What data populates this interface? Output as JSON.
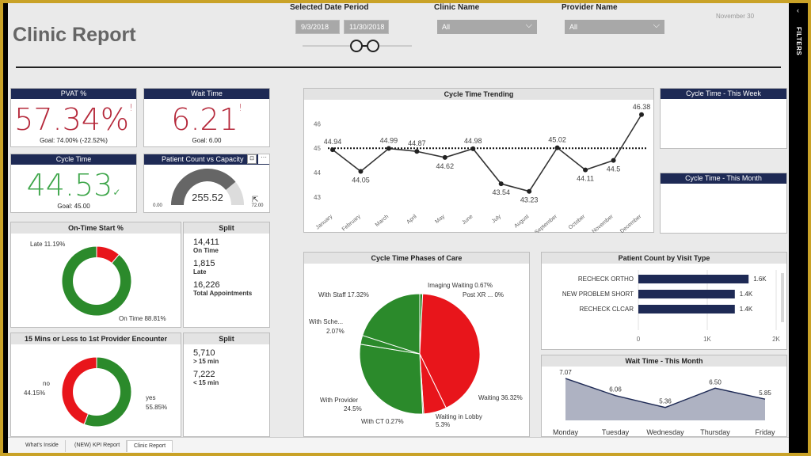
{
  "app": {
    "title": "Clinic Report",
    "date_stamp": "November 30",
    "filters_label": "FILTERS"
  },
  "slicers": {
    "date_label": "Selected Date Period",
    "date_start": "9/3/2018",
    "date_end": "11/30/2018",
    "clinic_label": "Clinic Name",
    "clinic_value": "All",
    "provider_label": "Provider Name",
    "provider_value": "All"
  },
  "kpis": {
    "pvat": {
      "title": "PVAT %",
      "value": "57.34%",
      "goal": "Goal: 74.00% (-22.52%)",
      "indicator": "!"
    },
    "wait": {
      "title": "Wait Time",
      "value": "6.21",
      "goal": "Goal: 6.00",
      "indicator": "!"
    },
    "cycle": {
      "title": "Cycle Time",
      "value": "44.53",
      "goal": "Goal: 45.00",
      "indicator": "✓"
    },
    "patient_count": {
      "title": "Patient Count vs Capacity",
      "value": "255.52",
      "min": "0.00",
      "max": "72.00",
      "fraction": 0.78
    }
  },
  "ontime": {
    "title": "On-Time Start %",
    "late_label": "Late 11.19%",
    "ontime_label": "On Time 88.81%",
    "late_pct": 11.19,
    "ontime_pct": 88.81
  },
  "split1": {
    "title": "Split",
    "v1": "14,411",
    "l1": "On Time",
    "v2": "1,815",
    "l2": "Late",
    "v3": "16,226",
    "l3": "Total Appointments"
  },
  "fifteen": {
    "title": "15 Mins or Less to 1st Provider Encounter",
    "no_label": "no",
    "no_pct_label": "44.15%",
    "yes_label": "yes",
    "yes_pct_label": "55.85%",
    "no_pct": 44.15,
    "yes_pct": 55.85
  },
  "split2": {
    "title": "Split",
    "v1": "5,710",
    "l1": "> 15 min",
    "v2": "7,222",
    "l2": "< 15 min"
  },
  "cycle_trend": {
    "title": "Cycle Time Trending"
  },
  "week_card": {
    "title": "Cycle Time - This Week"
  },
  "month_card": {
    "title": "Cycle Time - This Month"
  },
  "phases": {
    "title": "Cycle Time Phases of Care",
    "labels": {
      "imaging": "Imaging Waiting 0.67%",
      "postxr": "Post XR ... 0%",
      "waiting": "Waiting 36.32%",
      "lobby1": "Waiting in Lobby",
      "lobby2": "5.3%",
      "ct": "With CT 0.27%",
      "provider1": "With Provider",
      "provider2": "24.5%",
      "sche1": "With Sche...",
      "sche2": "2.07%",
      "staff": "With Staff 17.32%"
    }
  },
  "visit_type": {
    "title": "Patient Count by Visit Type"
  },
  "wait_month": {
    "title": "Wait Time - This Month"
  },
  "tabs": [
    "What's Inside",
    "(NEW) KPI Report",
    "Clinic Report"
  ],
  "chart_data": [
    {
      "type": "line",
      "title": "Cycle Time Trending",
      "categories": [
        "January",
        "February",
        "March",
        "April",
        "May",
        "June",
        "July",
        "August",
        "September",
        "October",
        "November",
        "December"
      ],
      "values": [
        44.94,
        44.05,
        44.99,
        44.87,
        44.62,
        44.98,
        43.54,
        43.23,
        45.02,
        44.11,
        44.5,
        46.38
      ],
      "data_labels": [
        "44.94",
        "44.05",
        "44.99",
        "44.87",
        "44.62",
        "44.98",
        "43.54",
        "43.23",
        "45.02",
        "44.11",
        "44.5",
        "46.38"
      ],
      "reference_line": 45,
      "y_ticks": [
        "46",
        "45",
        "44",
        "43"
      ],
      "ylim": [
        42.7,
        46.6
      ]
    },
    {
      "type": "pie",
      "title": "Cycle Time Phases of Care",
      "categories": [
        "Imaging Waiting",
        "Post XR ...",
        "Waiting",
        "Waiting in Lobby",
        "With CT",
        "With Provider",
        "With Sche...",
        "With Staff"
      ],
      "values": [
        0.67,
        0,
        36.32,
        5.3,
        0.27,
        24.5,
        2.07,
        17.32
      ]
    },
    {
      "type": "bar",
      "title": "Patient Count by Visit Type",
      "categories": [
        "RECHECK ORTHO",
        "NEW PROBLEM SHORT",
        "RECHECK CLCAR"
      ],
      "values": [
        1600,
        1400,
        1400
      ],
      "value_labels": [
        "1.6K",
        "1.4K",
        "1.4K"
      ],
      "x_ticks": [
        "0",
        "1K",
        "2K"
      ],
      "xlim": [
        0,
        2000
      ]
    },
    {
      "type": "area",
      "title": "Wait Time - This Month",
      "categories": [
        "Monday",
        "Tuesday",
        "Wednesday",
        "Thursday",
        "Friday"
      ],
      "values": [
        7.07,
        6.06,
        5.36,
        6.5,
        5.85
      ],
      "data_labels": [
        "7.07",
        "6.06",
        "5.36",
        "6.50",
        "5.85"
      ],
      "ylim": [
        4.6,
        7.4
      ]
    }
  ],
  "colors": {
    "navy": "#1e2a55",
    "red": "#c0263a",
    "green": "#2e9a3c",
    "pie_red": "#e8151b",
    "pie_green": "#2b8a2b",
    "area": "#aeb2c2"
  }
}
